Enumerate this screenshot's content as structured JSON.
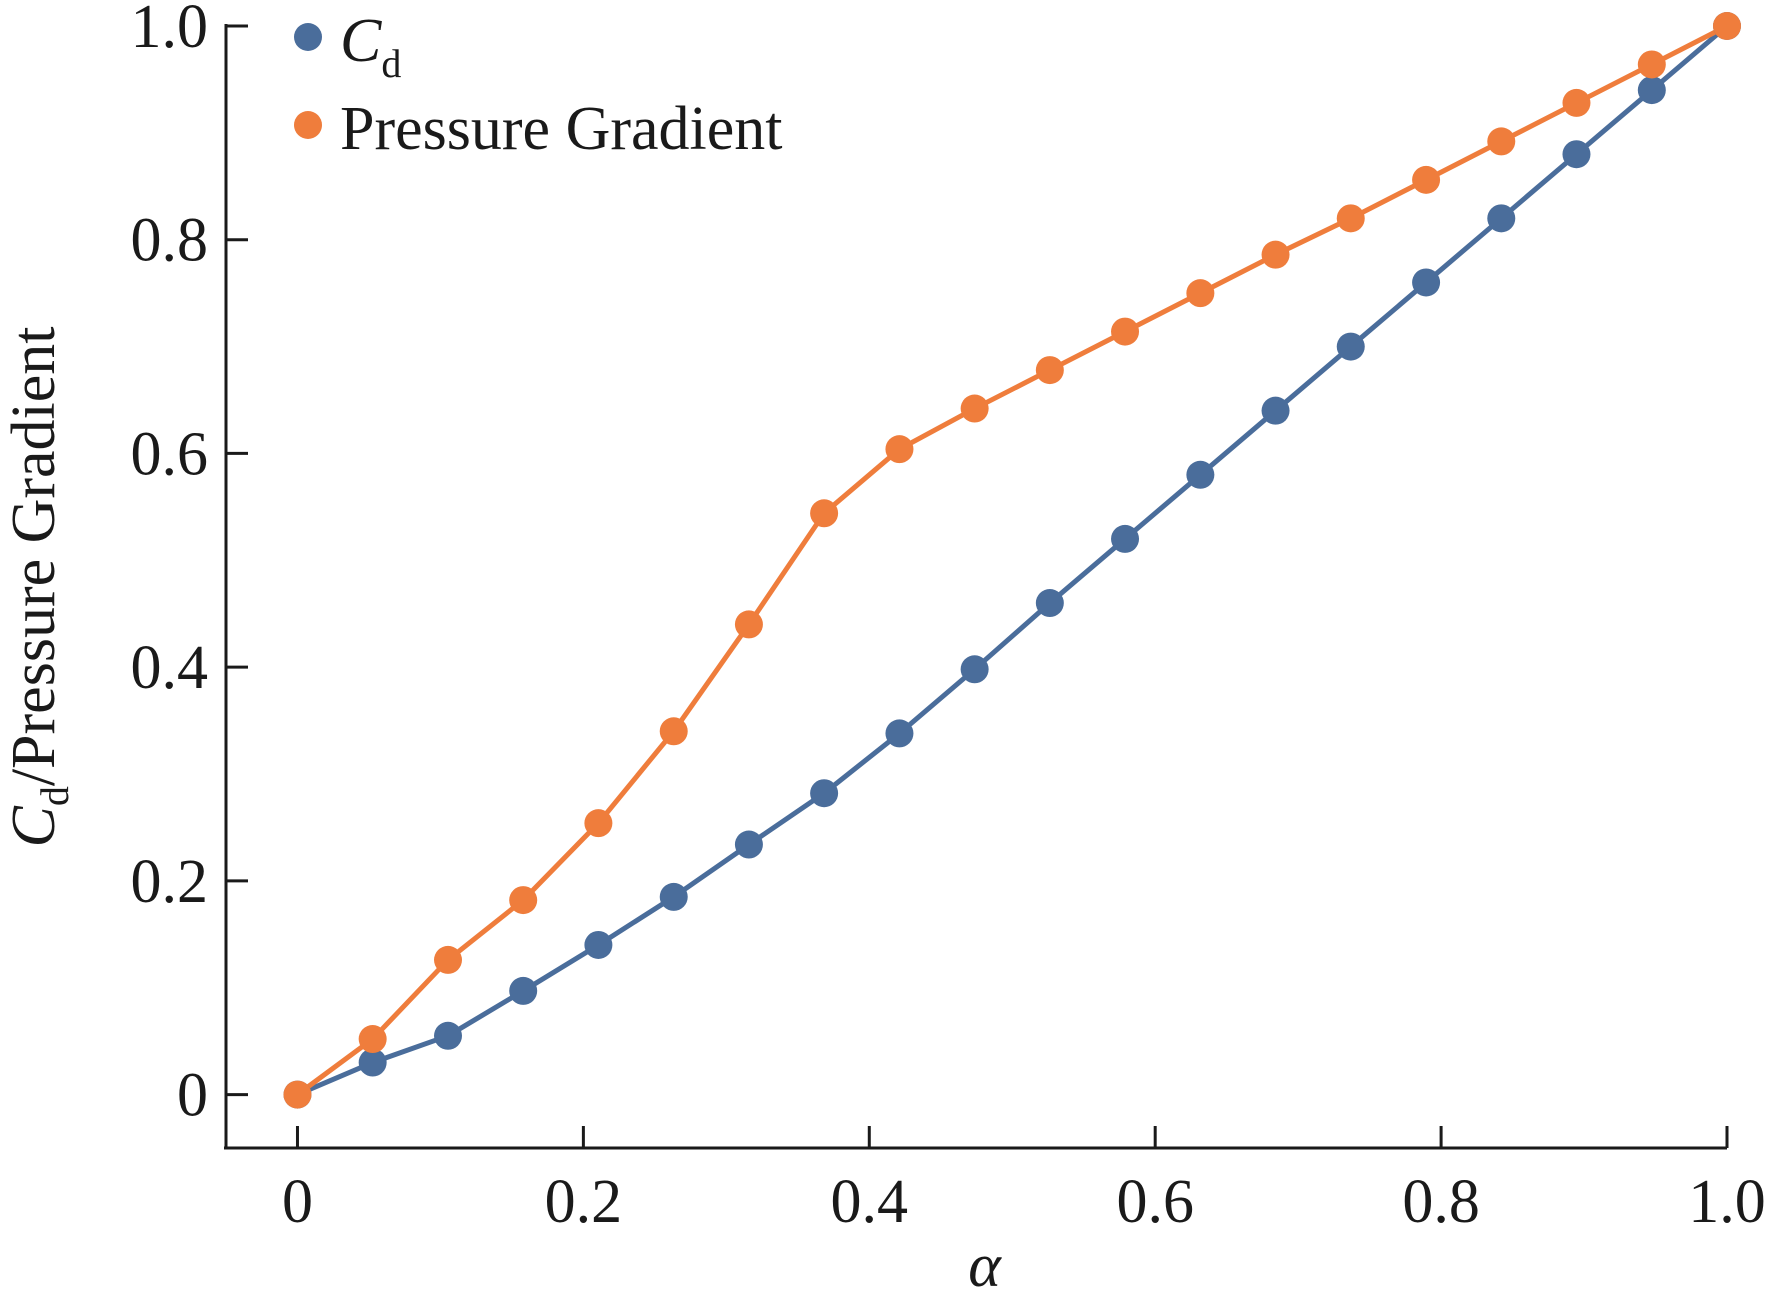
{
  "chart_data": {
    "type": "line",
    "title": "",
    "xlabel": "α",
    "ylabel": {
      "main": "C",
      "sub": "d",
      "rest": "/Pressure Gradient"
    },
    "xlim": [
      -0.05,
      1.0
    ],
    "ylim": [
      -0.05,
      1.0
    ],
    "xticks": [
      0,
      0.2,
      0.4,
      0.6,
      0.8,
      1.0
    ],
    "xtick_labels": [
      "0",
      "0.2",
      "0.4",
      "0.6",
      "0.8",
      "1.0"
    ],
    "yticks": [
      0,
      0.2,
      0.4,
      0.6,
      0.8,
      1.0
    ],
    "ytick_labels": [
      "0",
      "0.2",
      "0.4",
      "0.6",
      "0.8",
      "1.0"
    ],
    "grid": false,
    "legend_position": "top-left",
    "x": [
      0,
      0.0526,
      0.1053,
      0.1579,
      0.2105,
      0.2632,
      0.3158,
      0.3684,
      0.4211,
      0.4737,
      0.5263,
      0.5789,
      0.6316,
      0.6842,
      0.7368,
      0.7895,
      0.8421,
      0.8947,
      0.9474,
      1.0
    ],
    "series": [
      {
        "name": "C",
        "name_sub": "d",
        "color": "#4a6d9b",
        "values": [
          0,
          0.03,
          0.055,
          0.097,
          0.14,
          0.185,
          0.234,
          0.282,
          0.338,
          0.398,
          0.46,
          0.52,
          0.58,
          0.64,
          0.7,
          0.76,
          0.82,
          0.88,
          0.94,
          1.0
        ]
      },
      {
        "name": "Pressure Gradient",
        "name_sub": "",
        "color": "#ef7d3c",
        "values": [
          0,
          0.052,
          0.126,
          0.182,
          0.254,
          0.34,
          0.44,
          0.544,
          0.604,
          0.642,
          0.678,
          0.714,
          0.75,
          0.786,
          0.82,
          0.856,
          0.892,
          0.928,
          0.964,
          1.0
        ]
      }
    ]
  }
}
